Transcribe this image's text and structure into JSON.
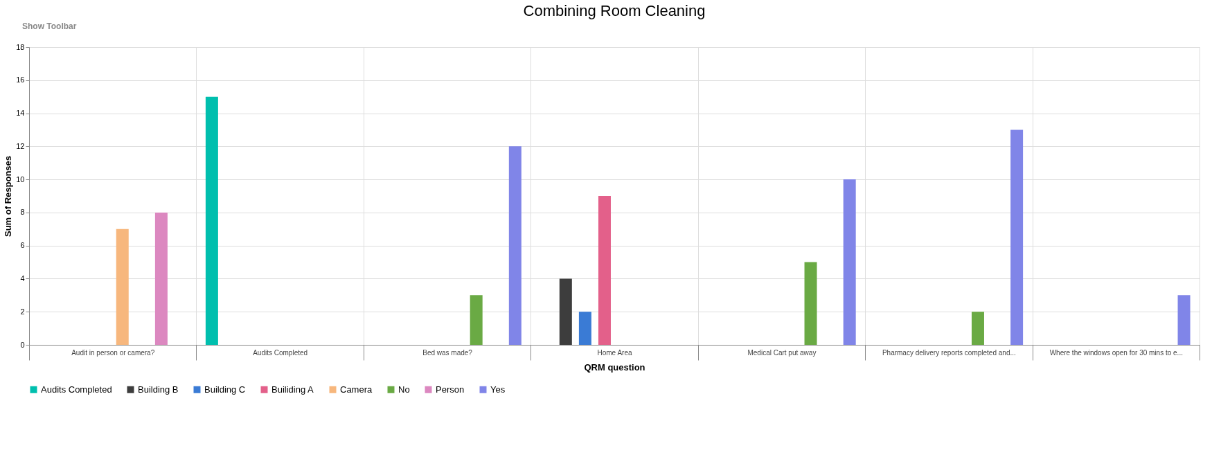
{
  "chart_data": {
    "type": "bar",
    "title": "Combining Room Cleaning",
    "xlabel": "QRM question",
    "ylabel": "Sum of Responses",
    "annotations": [
      "Show Toolbar"
    ],
    "categories": [
      "Audit in person or camera?",
      "Audits Completed",
      "Bed was made?",
      "Home Area",
      "Medical Cart put away",
      "Pharmacy delivery reports completed and...",
      "Where the windows open for 30 mins to e..."
    ],
    "series": [
      {
        "name": "Audits Completed",
        "color": "#00bfae",
        "values": [
          null,
          15,
          null,
          null,
          null,
          null,
          null
        ]
      },
      {
        "name": "Building B",
        "color": "#3d3d3d",
        "values": [
          null,
          null,
          null,
          4,
          null,
          null,
          null
        ]
      },
      {
        "name": "Building C",
        "color": "#3a7bd5",
        "values": [
          null,
          null,
          null,
          2,
          null,
          null,
          null
        ]
      },
      {
        "name": "Builiding A",
        "color": "#e3608a",
        "values": [
          null,
          null,
          null,
          9,
          null,
          null,
          null
        ]
      },
      {
        "name": "Camera",
        "color": "#f7b77d",
        "values": [
          7,
          null,
          null,
          null,
          null,
          null,
          null
        ]
      },
      {
        "name": "No",
        "color": "#6aaa44",
        "values": [
          null,
          null,
          3,
          null,
          5,
          2,
          null
        ]
      },
      {
        "name": "Person",
        "color": "#dc88c0",
        "values": [
          8,
          null,
          null,
          null,
          null,
          null,
          null
        ]
      },
      {
        "name": "Yes",
        "color": "#8085e8",
        "values": [
          null,
          null,
          12,
          null,
          10,
          13,
          3
        ]
      }
    ],
    "ylim": [
      0,
      18
    ],
    "yticks": [
      0,
      2,
      4,
      6,
      8,
      10,
      12,
      14,
      16,
      18
    ],
    "grid": true,
    "legend": "bottom"
  }
}
